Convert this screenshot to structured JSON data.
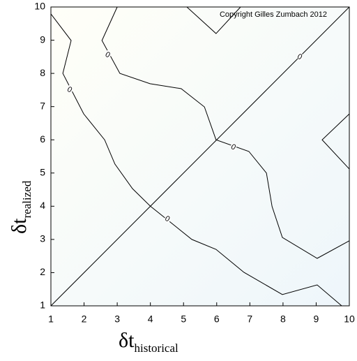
{
  "chart_data": {
    "type": "contour",
    "annotation": "Copyright Gilles Zumbach 2012",
    "xlabel": "δt",
    "xlabel_sub": "historical",
    "ylabel": "δt",
    "ylabel_sub": "realized",
    "xlim": [
      1,
      10
    ],
    "ylim": [
      1,
      10
    ],
    "xticks": [
      1,
      2,
      3,
      4,
      5,
      6,
      7,
      8,
      9,
      10
    ],
    "yticks": [
      1,
      2,
      3,
      4,
      5,
      6,
      7,
      8,
      9,
      10
    ],
    "line_color": "#000000",
    "series": [
      {
        "x": [
          1.0,
          1.61,
          1.36,
          1.99,
          2.62,
          2.93,
          3.46,
          3.99,
          5.25,
          5.98,
          6.82,
          7.98,
          9.03,
          9.77
        ],
        "y": [
          9.79,
          8.99,
          8.0,
          6.78,
          6.0,
          5.27,
          4.53,
          4.01,
          3.0,
          2.7,
          2.01,
          1.34,
          1.63,
          1.0
        ],
        "labels": [
          {
            "x": 1.57,
            "y": 7.52,
            "text": "0"
          },
          {
            "x": 4.52,
            "y": 3.63,
            "text": "0"
          }
        ]
      },
      {
        "x": [
          3.0,
          2.54,
          3.08,
          3.99,
          4.93,
          5.63,
          5.98,
          6.97,
          7.5,
          7.67,
          7.98,
          9.03,
          10.0
        ],
        "y": [
          10.0,
          8.99,
          8.0,
          7.69,
          7.54,
          6.99,
          6.0,
          5.65,
          5.0,
          3.99,
          3.06,
          2.43,
          2.96
        ],
        "labels": [
          {
            "x": 2.72,
            "y": 8.57,
            "text": "0"
          },
          {
            "x": 6.51,
            "y": 5.79,
            "text": "0"
          }
        ]
      },
      {
        "x": [
          5.1,
          5.98,
          6.72
        ],
        "y": [
          10.0,
          9.2,
          10.0
        ],
        "labels": []
      },
      {
        "x": [
          10.0,
          9.18,
          10.0
        ],
        "y": [
          6.78,
          6.0,
          5.12
        ],
        "labels": []
      },
      {
        "x": [
          1,
          10
        ],
        "y": [
          1,
          10
        ],
        "labels": [
          {
            "x": 8.51,
            "y": 8.51,
            "text": "0"
          }
        ]
      }
    ]
  }
}
